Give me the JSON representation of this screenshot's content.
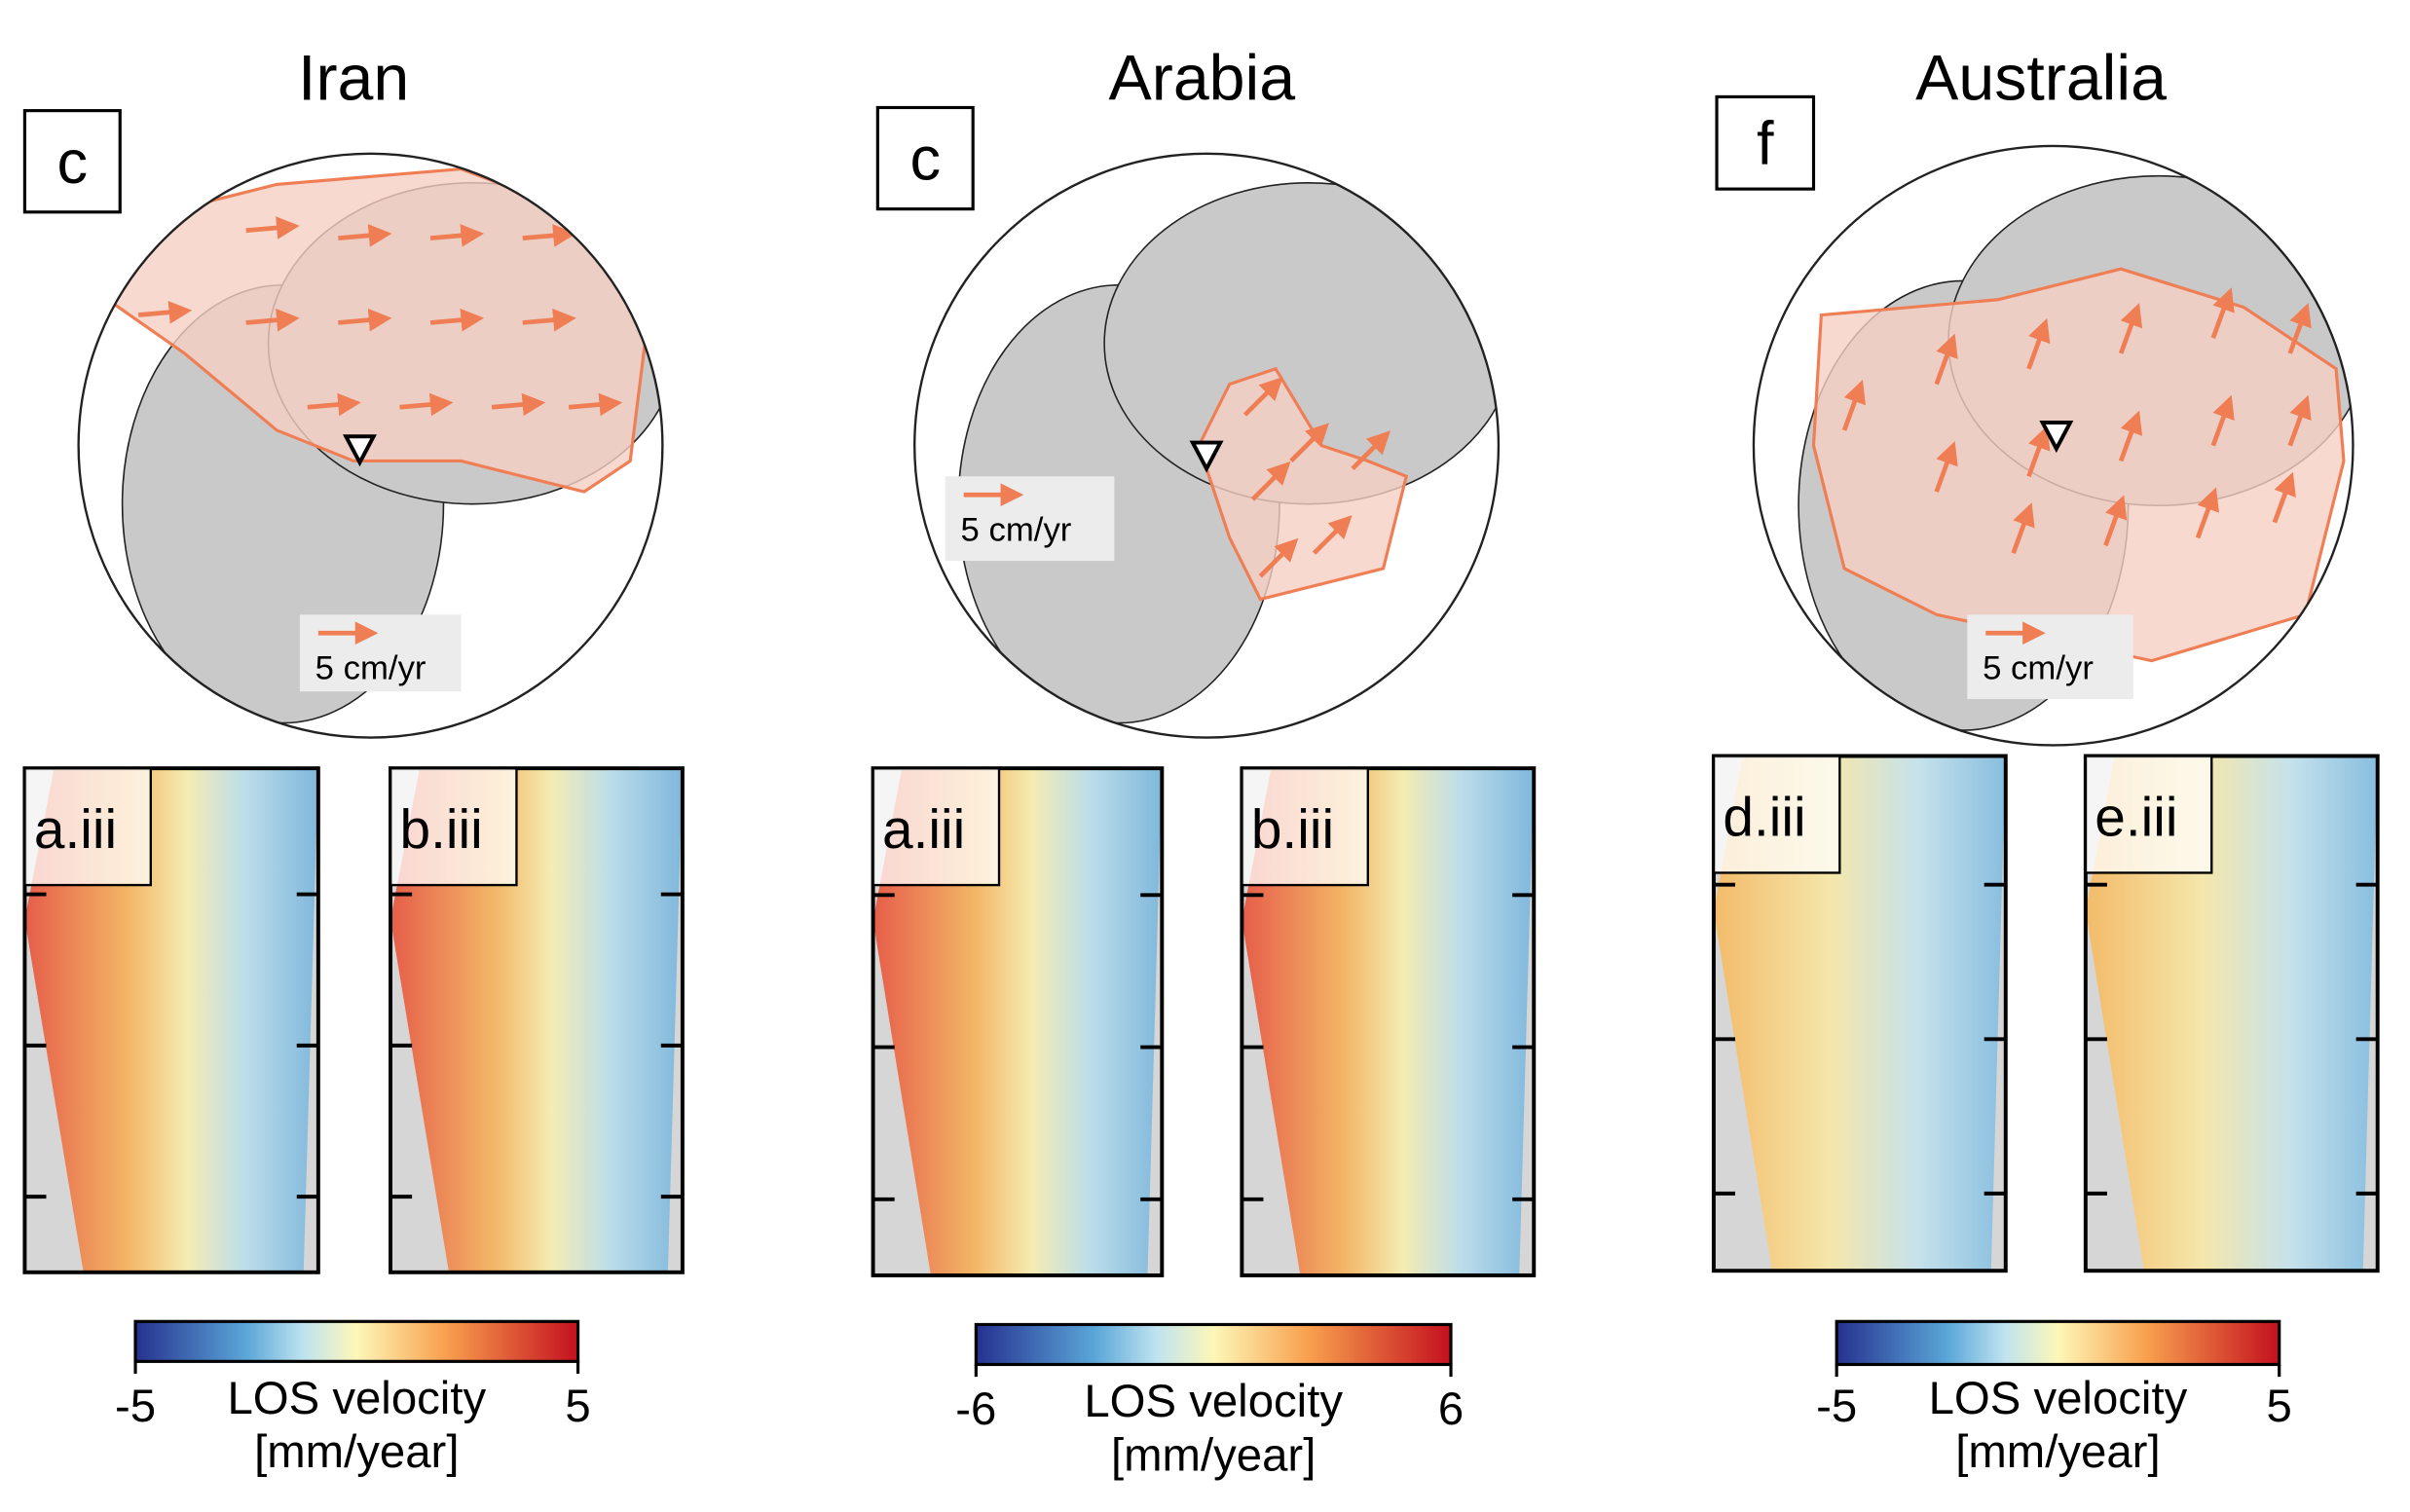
{
  "panels": [
    {
      "title": "Iran",
      "globe_label": "c",
      "arrow_label": "5 cm/yr",
      "insar_labels": [
        "a.iii",
        "b.iii"
      ],
      "colorbar": {
        "min": -5,
        "max": 5,
        "label": [
          "LOS velocity",
          "[mm/year]"
        ]
      }
    },
    {
      "title": "Arabia",
      "globe_label": "c",
      "arrow_label": "5 cm/yr",
      "insar_labels": [
        "a.iii",
        "b.iii"
      ],
      "colorbar": {
        "min": -6,
        "max": 6,
        "label": [
          "LOS velocity",
          "[mm/year]"
        ]
      }
    },
    {
      "title": "Australia",
      "globe_label": "f",
      "arrow_label": "5 cm/yr",
      "insar_labels": [
        "d.iii",
        "e.iii"
      ],
      "colorbar": {
        "min": -5,
        "max": 5,
        "label": [
          "LOS velocity",
          "[mm/year]"
        ]
      }
    }
  ]
}
